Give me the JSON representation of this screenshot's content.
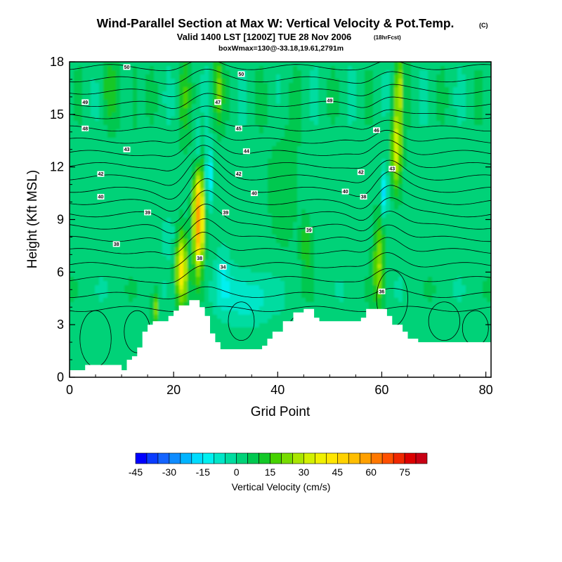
{
  "chart_data": {
    "type": "heatmap",
    "title": "Wind-Parallel Section at Max W: Vertical Velocity & Pot.Temp.",
    "title_mark": "(C)",
    "subtitle": "Valid 1400 LST [1200Z] TUE 28 Nov 2006",
    "subtitle_mark": "(18hrFcst)",
    "subtitle2": "boxWmax=130@-33.18,19.61,2791m",
    "xlabel": "Grid Point",
    "ylabel": "Height (Kft MSL)",
    "xlim": [
      0,
      81
    ],
    "ylim": [
      0,
      18
    ],
    "xticks": [
      0,
      20,
      40,
      60,
      80
    ],
    "yticks": [
      0,
      3,
      6,
      9,
      12,
      15,
      18
    ],
    "colorbar": {
      "label": "Vertical Velocity (cm/s)",
      "tick_values": [
        -45,
        -30,
        -15,
        0,
        15,
        30,
        45,
        60,
        75
      ],
      "levels": [
        -45,
        -40,
        -35,
        -30,
        -25,
        -20,
        -15,
        -10,
        -5,
        0,
        5,
        10,
        15,
        20,
        25,
        30,
        35,
        40,
        45,
        50,
        55,
        60,
        65,
        70,
        75,
        80
      ],
      "colors": [
        "#0000ff",
        "#0a3cff",
        "#1464ff",
        "#0f8cff",
        "#00b4ff",
        "#00dcff",
        "#00f0f0",
        "#00e6c8",
        "#00dca0",
        "#00d278",
        "#00c850",
        "#14c828",
        "#46d200",
        "#78dc00",
        "#aae600",
        "#d2f000",
        "#f0f000",
        "#ffe600",
        "#ffd200",
        "#ffbe00",
        "#ffa000",
        "#ff7800",
        "#ff5000",
        "#f02800",
        "#dc0000",
        "#c80014"
      ]
    },
    "terrain": [
      [
        0,
        0.4
      ],
      [
        3,
        0.4
      ],
      [
        3,
        0.7
      ],
      [
        10,
        0.7
      ],
      [
        10,
        0.4
      ],
      [
        11,
        0.4
      ],
      [
        11,
        1.0
      ],
      [
        12,
        1.0
      ],
      [
        12,
        1.2
      ],
      [
        13,
        1.2
      ],
      [
        13,
        1.7
      ],
      [
        14,
        1.7
      ],
      [
        14,
        2.6
      ],
      [
        15,
        2.6
      ],
      [
        15,
        3.0
      ],
      [
        16,
        3.0
      ],
      [
        16,
        3.2
      ],
      [
        19,
        3.2
      ],
      [
        19,
        3.5
      ],
      [
        20,
        3.5
      ],
      [
        20,
        3.8
      ],
      [
        21,
        3.8
      ],
      [
        21,
        4.1
      ],
      [
        23,
        4.1
      ],
      [
        23,
        4.4
      ],
      [
        25,
        4.4
      ],
      [
        25,
        4.0
      ],
      [
        26,
        4.0
      ],
      [
        26,
        3.5
      ],
      [
        27,
        3.5
      ],
      [
        27,
        2.5
      ],
      [
        28,
        2.5
      ],
      [
        28,
        2.0
      ],
      [
        29,
        2.0
      ],
      [
        29,
        1.6
      ],
      [
        37,
        1.6
      ],
      [
        37,
        1.8
      ],
      [
        38,
        1.8
      ],
      [
        38,
        2.2
      ],
      [
        39,
        2.2
      ],
      [
        39,
        2.6
      ],
      [
        41,
        2.6
      ],
      [
        41,
        3.2
      ],
      [
        43,
        3.2
      ],
      [
        43,
        3.7
      ],
      [
        45,
        3.7
      ],
      [
        45,
        3.9
      ],
      [
        47,
        3.9
      ],
      [
        47,
        3.4
      ],
      [
        48,
        3.4
      ],
      [
        48,
        3.2
      ],
      [
        56,
        3.2
      ],
      [
        56,
        3.4
      ],
      [
        57,
        3.4
      ],
      [
        57,
        3.9
      ],
      [
        61,
        3.9
      ],
      [
        61,
        3.5
      ],
      [
        62,
        3.5
      ],
      [
        62,
        3.0
      ],
      [
        64,
        3.0
      ],
      [
        64,
        2.6
      ],
      [
        65,
        2.6
      ],
      [
        65,
        2.2
      ],
      [
        67,
        2.2
      ],
      [
        67,
        2.0
      ],
      [
        81,
        2.0
      ]
    ],
    "features": [
      {
        "kind": "updraft",
        "x": 24.8,
        "y": 9.0,
        "w": 58,
        "sx": 1.0,
        "sy": 2.8
      },
      {
        "kind": "updraft",
        "x": 21.5,
        "y": 6.2,
        "w": 38,
        "sx": 1.1,
        "sy": 2.0
      },
      {
        "kind": "updraft",
        "x": 16.5,
        "y": 4.0,
        "w": 22,
        "sx": 0.7,
        "sy": 1.0
      },
      {
        "kind": "updraft",
        "x": 28.5,
        "y": 16.5,
        "w": 18,
        "sx": 0.9,
        "sy": 2.0
      },
      {
        "kind": "updraft",
        "x": 22.0,
        "y": 16.0,
        "w": 10,
        "sx": 1.2,
        "sy": 2.5
      },
      {
        "kind": "updraft",
        "x": 62.8,
        "y": 13.0,
        "w": 32,
        "sx": 1.0,
        "sy": 2.2
      },
      {
        "kind": "updraft",
        "x": 63.5,
        "y": 16.5,
        "w": 22,
        "sx": 1.2,
        "sy": 1.8
      },
      {
        "kind": "updraft",
        "x": 59.5,
        "y": 6.5,
        "w": 22,
        "sx": 1.1,
        "sy": 2.5
      },
      {
        "kind": "updraft",
        "x": 45.5,
        "y": 7.5,
        "w": 12,
        "sx": 1.0,
        "sy": 1.5
      },
      {
        "kind": "updraft",
        "x": 41.0,
        "y": 11.0,
        "w": 6,
        "sx": 3.0,
        "sy": 4.0
      },
      {
        "kind": "updraft",
        "x": 7.5,
        "y": 16.5,
        "w": 10,
        "sx": 1.5,
        "sy": 2.0
      },
      {
        "kind": "updraft",
        "x": 12.5,
        "y": 16.0,
        "w": 8,
        "sx": 1.0,
        "sy": 2.5
      },
      {
        "kind": "downdraft",
        "x": 34.0,
        "y": 4.6,
        "w": -14,
        "sx": 4.5,
        "sy": 1.4
      },
      {
        "kind": "downdraft",
        "x": 29.5,
        "y": 5.8,
        "w": -10,
        "sx": 1.2,
        "sy": 1.5
      },
      {
        "kind": "downdraft",
        "x": 26.8,
        "y": 11.5,
        "w": -22,
        "sx": 0.55,
        "sy": 1.6
      },
      {
        "kind": "downdraft",
        "x": 24.5,
        "y": 13.0,
        "w": -14,
        "sx": 0.5,
        "sy": 1.5
      },
      {
        "kind": "downdraft",
        "x": 60.5,
        "y": 10.5,
        "w": -20,
        "sx": 0.6,
        "sy": 1.4
      },
      {
        "kind": "downdraft",
        "x": 64.5,
        "y": 16.5,
        "w": -14,
        "sx": 0.5,
        "sy": 1.6
      },
      {
        "kind": "downdraft",
        "x": 19.0,
        "y": 8.0,
        "w": -6,
        "sx": 1.5,
        "sy": 1.2
      }
    ],
    "theta_lines": [
      {
        "base": 3.9,
        "amp": 0.0
      },
      {
        "base": 4.7,
        "amp": 0.25
      },
      {
        "base": 5.6,
        "amp": 0.5
      },
      {
        "base": 6.4,
        "amp": 0.7
      },
      {
        "base": 7.2,
        "amp": 0.9
      },
      {
        "base": 7.9,
        "amp": 1.0
      },
      {
        "base": 8.6,
        "amp": 1.1
      },
      {
        "base": 9.3,
        "amp": 1.1
      },
      {
        "base": 10.0,
        "amp": 1.0
      },
      {
        "base": 10.7,
        "amp": 1.0
      },
      {
        "base": 11.4,
        "amp": 0.9
      },
      {
        "base": 12.1,
        "amp": 0.8
      },
      {
        "base": 12.8,
        "amp": 0.75
      },
      {
        "base": 13.5,
        "amp": 0.7
      },
      {
        "base": 14.2,
        "amp": 0.65
      },
      {
        "base": 14.9,
        "amp": 0.55
      },
      {
        "base": 15.6,
        "amp": 0.5
      },
      {
        "base": 16.3,
        "amp": 0.4
      },
      {
        "base": 17.0,
        "amp": 0.35
      },
      {
        "base": 17.7,
        "amp": 0.25
      }
    ],
    "contour_labels": [
      {
        "text": "50",
        "x": 11.0,
        "y": 17.7
      },
      {
        "text": "50",
        "x": 33.0,
        "y": 17.3
      },
      {
        "text": "49",
        "x": 3.0,
        "y": 15.7
      },
      {
        "text": "49",
        "x": 50.0,
        "y": 15.8
      },
      {
        "text": "47",
        "x": 28.5,
        "y": 15.7
      },
      {
        "text": "48",
        "x": 3.0,
        "y": 14.2
      },
      {
        "text": "45",
        "x": 32.5,
        "y": 14.2
      },
      {
        "text": "46",
        "x": 59.0,
        "y": 14.1
      },
      {
        "text": "43",
        "x": 11.0,
        "y": 13.0
      },
      {
        "text": "44",
        "x": 34.0,
        "y": 12.9
      },
      {
        "text": "42",
        "x": 6.0,
        "y": 11.6
      },
      {
        "text": "42",
        "x": 32.5,
        "y": 11.6
      },
      {
        "text": "42",
        "x": 56.0,
        "y": 11.7
      },
      {
        "text": "43",
        "x": 62.0,
        "y": 11.9
      },
      {
        "text": "40",
        "x": 6.0,
        "y": 10.3
      },
      {
        "text": "40",
        "x": 35.5,
        "y": 10.5
      },
      {
        "text": "40",
        "x": 53.0,
        "y": 10.6
      },
      {
        "text": "38",
        "x": 56.5,
        "y": 10.3
      },
      {
        "text": "39",
        "x": 15.0,
        "y": 9.4
      },
      {
        "text": "39",
        "x": 30.0,
        "y": 9.4
      },
      {
        "text": "39",
        "x": 46.0,
        "y": 8.4
      },
      {
        "text": "38",
        "x": 9.0,
        "y": 7.6
      },
      {
        "text": "38",
        "x": 25.0,
        "y": 6.8
      },
      {
        "text": "34",
        "x": 29.5,
        "y": 6.3
      },
      {
        "text": "36",
        "x": 60.0,
        "y": 4.9
      }
    ]
  }
}
